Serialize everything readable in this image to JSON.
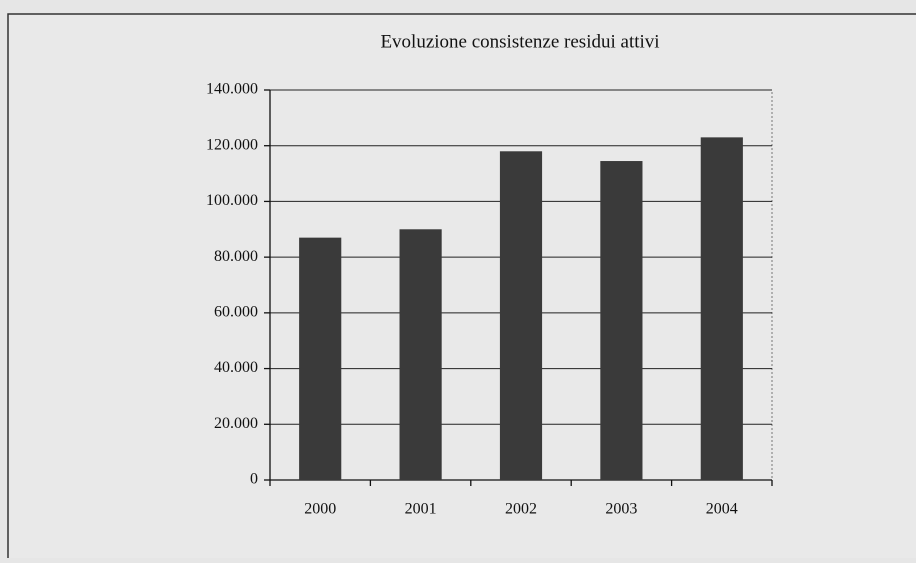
{
  "chart_data": {
    "type": "bar",
    "title": "Evoluzione consistenze residui attivi",
    "categories": [
      "2000",
      "2001",
      "2002",
      "2003",
      "2004"
    ],
    "values": [
      87000,
      90000,
      118000,
      114500,
      123000
    ],
    "color": "#3a3a3a",
    "ylim": [
      0,
      140000
    ],
    "yticks": [
      0,
      {
        "value": 20000,
        "label": "20.000"
      },
      {
        "value": 40000,
        "label": "40.000"
      },
      {
        "value": 60000,
        "label": "60.000"
      },
      {
        "value": 80000,
        "label": "80.000"
      },
      {
        "value": 100000,
        "label": "100.000"
      },
      {
        "value": 120000,
        "label": "120.000"
      },
      {
        "value": 140000,
        "label": "140.000"
      }
    ],
    "grid": true
  }
}
